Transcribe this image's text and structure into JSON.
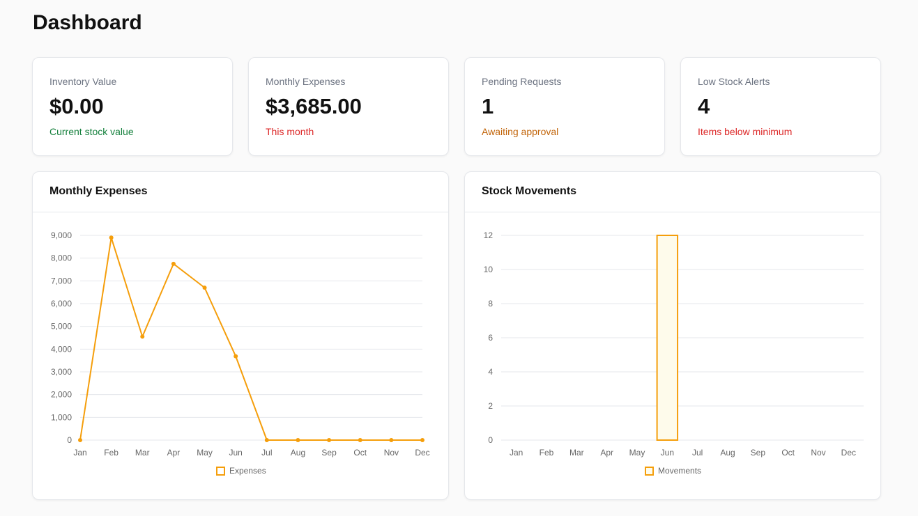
{
  "page": {
    "title": "Dashboard"
  },
  "stats": [
    {
      "label": "Inventory Value",
      "value": "$0.00",
      "sub": "Current stock value",
      "sub_color": "#15803d"
    },
    {
      "label": "Monthly Expenses",
      "value": "$3,685.00",
      "sub": "This month",
      "sub_color": "#dc2626"
    },
    {
      "label": "Pending Requests",
      "value": "1",
      "sub": "Awaiting approval",
      "sub_color": "#c2650a"
    },
    {
      "label": "Low Stock Alerts",
      "value": "4",
      "sub": "Items below minimum",
      "sub_color": "#dc2626"
    }
  ],
  "charts": {
    "expenses_title": "Monthly Expenses",
    "movements_title": "Stock Movements"
  },
  "chart_data": [
    {
      "type": "line",
      "title": "Monthly Expenses",
      "categories": [
        "Jan",
        "Feb",
        "Mar",
        "Apr",
        "May",
        "Jun",
        "Jul",
        "Aug",
        "Sep",
        "Oct",
        "Nov",
        "Dec"
      ],
      "series": [
        {
          "name": "Expenses",
          "values": [
            0,
            8900,
            4550,
            7750,
            6700,
            3685,
            0,
            0,
            0,
            0,
            0,
            0
          ]
        }
      ],
      "ylim": [
        0,
        9000
      ],
      "yticks": [
        0,
        1000,
        2000,
        3000,
        4000,
        5000,
        6000,
        7000,
        8000,
        9000
      ],
      "ytick_labels": [
        "0",
        "1,000",
        "2,000",
        "3,000",
        "4,000",
        "5,000",
        "6,000",
        "7,000",
        "8,000",
        "9,000"
      ],
      "color": "#f59e0b",
      "legend": "bottom",
      "grid": true
    },
    {
      "type": "bar",
      "title": "Stock Movements",
      "categories": [
        "Jan",
        "Feb",
        "Mar",
        "Apr",
        "May",
        "Jun",
        "Jul",
        "Aug",
        "Sep",
        "Oct",
        "Nov",
        "Dec"
      ],
      "series": [
        {
          "name": "Movements",
          "values": [
            0,
            0,
            0,
            0,
            0,
            12,
            0,
            0,
            0,
            0,
            0,
            0
          ]
        }
      ],
      "ylim": [
        0,
        12
      ],
      "yticks": [
        0,
        2,
        4,
        6,
        8,
        10,
        12
      ],
      "ytick_labels": [
        "0",
        "2",
        "4",
        "6",
        "8",
        "10",
        "12"
      ],
      "color": "#f59e0b",
      "fill": "#fefbeb",
      "legend": "bottom",
      "grid": true
    }
  ]
}
